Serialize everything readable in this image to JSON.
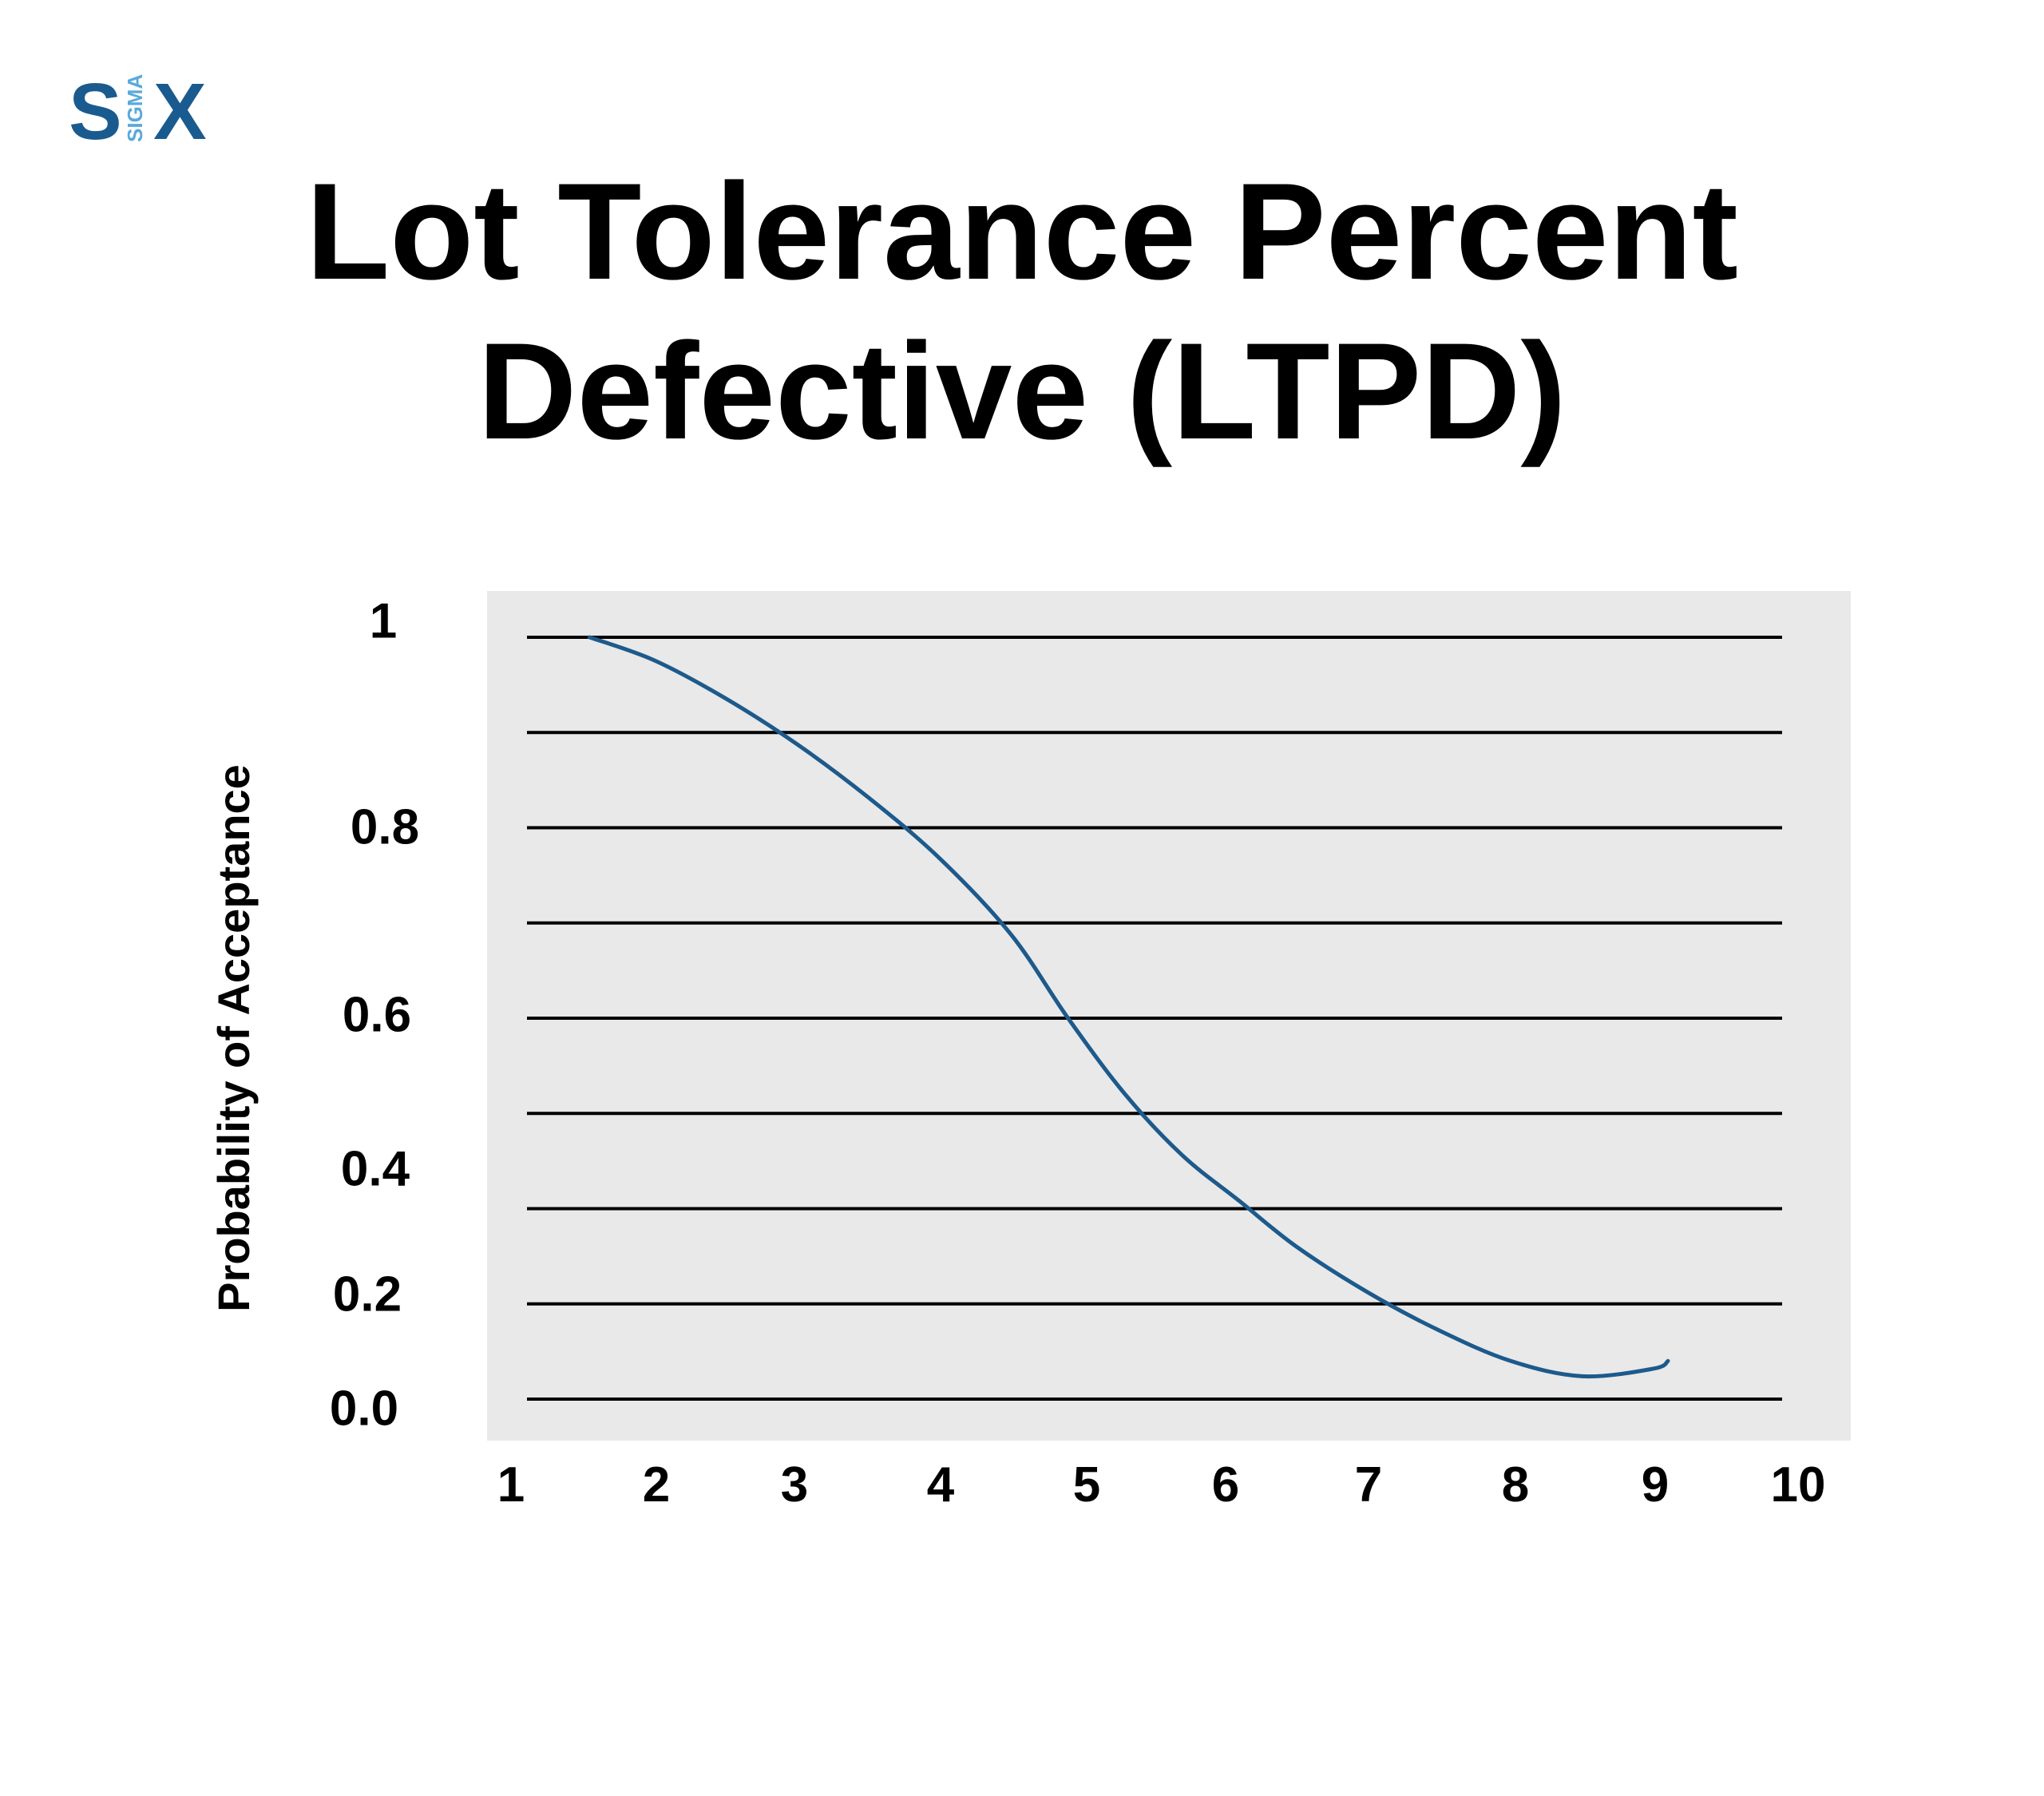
{
  "logo": {
    "letter_left": "S",
    "vertical_text": "SIGMA",
    "letter_right": "X",
    "color_dark": "#1a5b8f",
    "color_light": "#5aa9dc"
  },
  "title": {
    "line1": "Lot Tolerance Percent",
    "line2": "Defective (LTPD)"
  },
  "chart_data": {
    "type": "line",
    "title": "Lot Tolerance Percent Defective (LTPD)",
    "xlabel": "",
    "ylabel": "Probability of Acceptance",
    "xlim": [
      1,
      10
    ],
    "ylim": [
      0,
      1
    ],
    "x_ticks": [
      "1",
      "2",
      "3",
      "4",
      "5",
      "6",
      "7",
      "8",
      "9",
      "10"
    ],
    "y_ticks": [
      "0.0",
      "0.2",
      "0.4",
      "0.6",
      "0.8",
      "1"
    ],
    "grid": true,
    "plot_background": "#e9e9e9",
    "line_color": "#1d5a8c",
    "series": [
      {
        "x": [
          1.55,
          2.0,
          2.5,
          3.0,
          3.5,
          4.0,
          4.5,
          4.9,
          5.3,
          5.7,
          6.1,
          6.5,
          7.0,
          7.5,
          8.0,
          8.5,
          9.0,
          9.1
        ],
        "y": [
          1.0,
          0.97,
          0.92,
          0.86,
          0.79,
          0.71,
          0.61,
          0.5,
          0.4,
          0.32,
          0.26,
          0.2,
          0.14,
          0.09,
          0.05,
          0.03,
          0.04,
          0.05
        ]
      }
    ]
  }
}
